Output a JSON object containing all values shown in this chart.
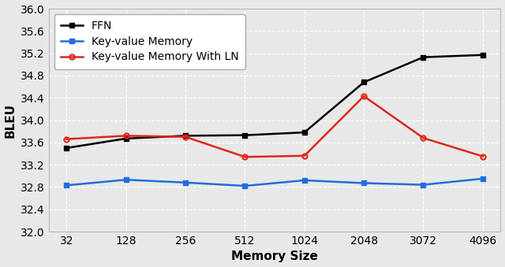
{
  "x_labels": [
    32,
    128,
    256,
    512,
    1024,
    2048,
    3072,
    4096
  ],
  "x_positions": [
    0,
    1,
    2,
    3,
    4,
    5,
    6,
    7
  ],
  "ffn": [
    33.5,
    33.67,
    33.72,
    33.73,
    33.78,
    34.68,
    35.13,
    35.17
  ],
  "kv_memory": [
    32.83,
    32.93,
    32.88,
    32.82,
    32.92,
    32.87,
    32.84,
    32.95
  ],
  "kv_memory_ln": [
    33.66,
    33.72,
    33.7,
    33.34,
    33.36,
    34.43,
    33.68,
    33.35
  ],
  "ffn_color": "#000000",
  "kv_color": "#1f6fdb",
  "kv_ln_color": "#e0261b",
  "ffn_label": "FFN",
  "kv_label": "Key-value Memory",
  "kv_ln_label": "Key-value Memory With LN",
  "xlabel": "Memory Size",
  "ylabel": "BLEU",
  "ylim": [
    32.0,
    36.0
  ],
  "yticks": [
    32.0,
    32.4,
    32.8,
    33.2,
    33.6,
    34.0,
    34.4,
    34.8,
    35.2,
    35.6,
    36.0
  ],
  "background_color": "#e8e8e8",
  "grid_color": "#ffffff",
  "legend_fontsize": 10,
  "axis_fontsize": 11,
  "tick_fontsize": 10,
  "linewidth": 1.8,
  "markersize": 4.5
}
